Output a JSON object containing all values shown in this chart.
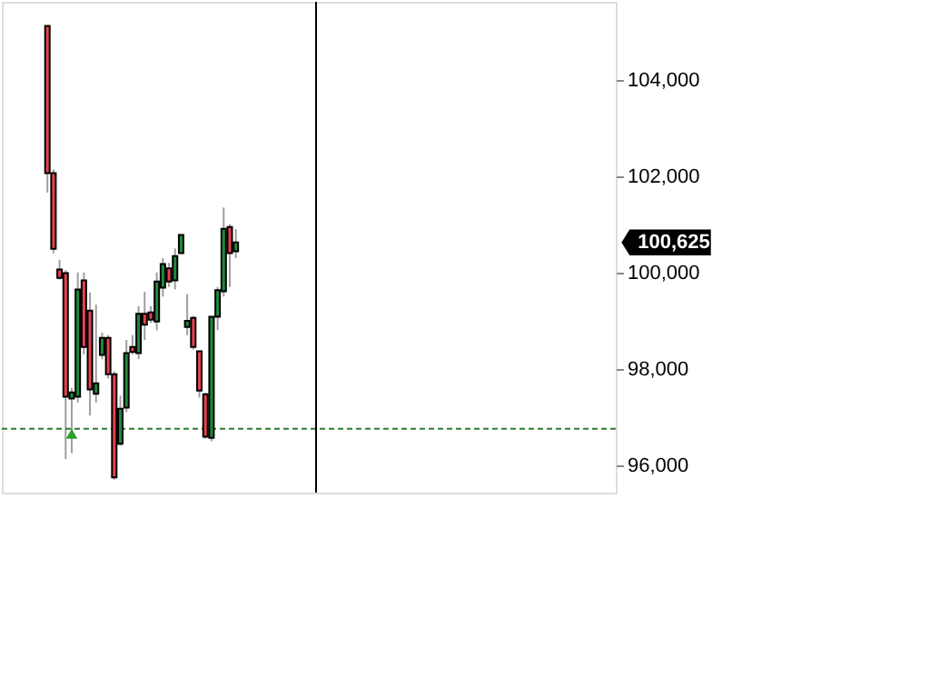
{
  "chart_data": {
    "type": "candlestick",
    "categories": [
      null,
      null,
      null,
      null,
      null,
      null,
      null,
      null,
      null,
      null,
      null,
      null,
      null,
      null,
      null,
      null,
      null,
      null,
      null,
      null,
      null,
      null,
      null,
      null,
      null,
      null,
      null,
      null,
      null,
      null,
      null,
      null,
      null,
      null,
      null,
      null,
      null,
      null,
      null,
      null,
      null,
      null,
      null,
      null,
      null,
      null,
      null,
      null,
      null,
      null,
      null,
      null,
      null,
      null,
      null,
      null,
      null,
      null,
      null,
      null,
      null,
      null,
      null,
      null,
      null,
      null,
      null,
      null,
      null,
      null,
      null,
      null,
      null,
      null,
      null,
      null,
      null,
      null,
      null,
      null,
      null,
      null,
      null,
      null,
      null,
      null,
      null,
      null,
      null,
      null,
      null,
      null,
      null,
      null,
      null,
      null,
      null,
      null,
      null,
      null,
      null
    ],
    "ohlc": [
      null,
      null,
      null,
      null,
      null,
      null,
      null,
      [
        105121,
        105121,
        101660,
        102064
      ],
      [
        102064,
        102140,
        100400,
        100490
      ],
      [
        100064,
        100264,
        99850,
        99887
      ],
      [
        99989,
        100050,
        96125,
        97423
      ],
      [
        97385,
        97600,
        96253,
        97509
      ],
      [
        97423,
        100000,
        97300,
        99649
      ],
      [
        99838,
        100000,
        98300,
        98453
      ],
      [
        99208,
        99585,
        97030,
        97574
      ],
      [
        97483,
        99332,
        97300,
        97698
      ],
      [
        98291,
        98750,
        98200,
        98642
      ],
      [
        98642,
        98700,
        97800,
        97887
      ],
      [
        97887,
        97950,
        95700,
        95747
      ],
      [
        96442,
        97445,
        96400,
        97170
      ],
      [
        97196,
        98600,
        97100,
        98328
      ],
      [
        98453,
        98700,
        98300,
        98351
      ],
      [
        98328,
        99300,
        98200,
        99145
      ],
      [
        99145,
        99600,
        98600,
        98917
      ],
      [
        99170,
        99300,
        98950,
        99019
      ],
      [
        98981,
        100000,
        98800,
        99811
      ],
      [
        99687,
        100300,
        99500,
        100177
      ],
      [
        100087,
        100200,
        99700,
        99811
      ],
      [
        99838,
        100500,
        99650,
        100340
      ],
      [
        100404,
        100781,
        100404,
        100781
      ],
      [
        98868,
        99550,
        98700,
        98996
      ],
      [
        99057,
        99100,
        98400,
        98453
      ],
      [
        98366,
        98366,
        97400,
        97547
      ],
      [
        97472,
        97500,
        96550,
        96592
      ],
      [
        96566,
        99083,
        96500,
        99083
      ],
      [
        99083,
        99700,
        98800,
        99634
      ],
      [
        99611,
        101350,
        99500,
        100906
      ],
      [
        100943,
        101000,
        99700,
        100404
      ],
      [
        100441,
        100900,
        100300,
        100625
      ],
      null,
      null,
      null,
      null,
      null,
      null,
      null,
      null,
      null,
      null,
      null,
      null,
      null,
      null,
      null,
      null,
      null,
      null,
      null,
      null,
      null,
      null,
      null,
      null,
      null,
      null,
      null,
      null,
      null,
      null,
      null,
      null,
      null,
      null,
      null,
      null,
      null,
      null,
      null,
      null,
      null,
      null,
      null,
      null,
      null,
      null,
      null,
      null,
      null,
      null,
      null,
      null,
      null,
      null,
      null,
      null,
      null,
      null,
      null,
      null,
      null,
      null
    ],
    "colors": [
      null,
      null,
      null,
      null,
      null,
      null,
      null,
      "#e8414f",
      "#e8414f",
      "#e8414f",
      "#e8414f",
      "#1e8a3a",
      "#1e8a3a",
      "#e8414f",
      "#e8414f",
      "#1e8a3a",
      "#1e8a3a",
      "#e8414f",
      "#e8414f",
      "#1e8a3a",
      "#1e8a3a",
      "#e8414f",
      "#1e8a3a",
      "#e8414f",
      "#e8414f",
      "#1e8a3a",
      "#1e8a3a",
      "#e8414f",
      "#1e8a3a",
      "#1e8a3a",
      "#1e8a3a",
      "#e8414f",
      "#e8414f",
      "#e8414f",
      "#1e8a3a",
      "#1e8a3a",
      "#1e8a3a",
      "#e8414f",
      "#1e8a3a",
      null,
      null,
      null,
      null,
      null,
      null,
      null,
      null,
      null,
      null,
      null,
      null,
      null,
      null,
      null,
      null,
      null,
      null,
      null,
      null,
      null,
      null,
      null,
      null,
      null,
      null,
      null,
      null,
      null,
      null,
      null,
      null,
      null,
      null,
      null,
      null,
      null,
      null,
      null,
      null,
      null,
      null,
      null,
      null,
      null,
      null,
      null,
      null,
      null,
      null,
      null,
      null,
      null,
      null,
      null,
      null,
      null,
      null,
      null,
      null,
      null,
      null
    ],
    "series": [
      {
        "type": "scatter",
        "marker": "triangle",
        "color": "#2ca02c",
        "values": [
          null,
          null,
          null,
          null,
          null,
          null,
          null,
          null,
          null,
          null,
          null,
          96650,
          null,
          null,
          null,
          null,
          null,
          null,
          null,
          null,
          null,
          null,
          null,
          null,
          null,
          null,
          null,
          null,
          null,
          null,
          null,
          null,
          null,
          null,
          null,
          null,
          null,
          null,
          null,
          null,
          null,
          null,
          null,
          null,
          null,
          null,
          null,
          null,
          null,
          null,
          null,
          null,
          null,
          null,
          null,
          null,
          null,
          null,
          null,
          null,
          null,
          null,
          null,
          null,
          null,
          null,
          null,
          null,
          null,
          null,
          null,
          null,
          null,
          null,
          null,
          null,
          null,
          null,
          null,
          null,
          null,
          null,
          null,
          null,
          null,
          null,
          null,
          null,
          null,
          null,
          null,
          null,
          null,
          null,
          null,
          null,
          null,
          null,
          null,
          null,
          null
        ]
      }
    ],
    "ylim": [
      95430,
      105620
    ],
    "yticks": [
      {
        "value": 96000,
        "label": "96,000"
      },
      {
        "value": 98000,
        "label": "98,000"
      },
      {
        "value": 100000,
        "label": "100,000"
      },
      {
        "value": 102000,
        "label": "102,000"
      },
      {
        "value": 104000,
        "label": "104,000"
      }
    ],
    "tick_labels": "y",
    "ref_lines": [
      {
        "axis": "y",
        "value": 96755,
        "color": "#2e7d32",
        "line_style": "dashed"
      }
    ],
    "annotations": [
      "100,625"
    ]
  }
}
